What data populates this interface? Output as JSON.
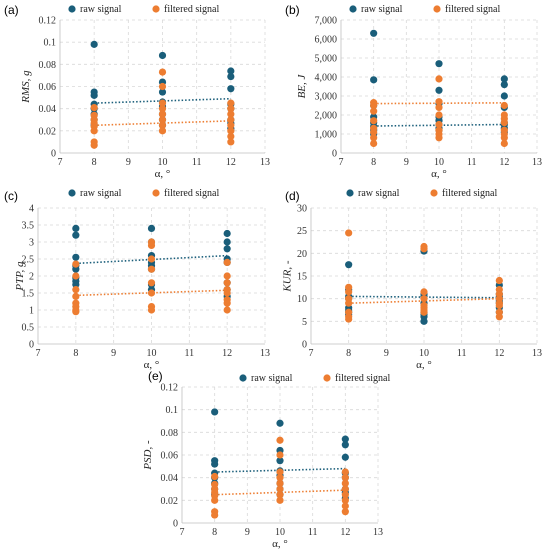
{
  "colors": {
    "raw": "#1a5e7a",
    "filtered": "#ed7d31"
  },
  "legend": {
    "raw": "raw signal",
    "filtered": "filtered signal"
  },
  "chart_data": [
    {
      "type": "scatter",
      "panel": "(a)",
      "xlabel": "α, °",
      "ylabel": "RMS, g",
      "xlim": [
        7,
        13
      ],
      "ylim": [
        0,
        0.12
      ],
      "xticks": [
        7,
        8,
        9,
        10,
        11,
        12,
        13
      ],
      "yticks": [
        0,
        0.02,
        0.04,
        0.06,
        0.08,
        0.1,
        0.12
      ],
      "ytick_labels": [
        "0",
        "0.02",
        "0.04",
        "0.06",
        "0.08",
        "0.1",
        "0.12"
      ],
      "legend_position": "top",
      "series": [
        {
          "name": "raw signal",
          "x": [
            8,
            8,
            8,
            8,
            8,
            8,
            8,
            8,
            10,
            10,
            10,
            10,
            10,
            10,
            10,
            10,
            12,
            12,
            12,
            12,
            12,
            12,
            12,
            12
          ],
          "y": [
            0.098,
            0.055,
            0.052,
            0.044,
            0.04,
            0.035,
            0.03,
            0.025,
            0.088,
            0.064,
            0.055,
            0.046,
            0.042,
            0.035,
            0.03,
            0.025,
            0.074,
            0.069,
            0.058,
            0.044,
            0.04,
            0.03,
            0.027,
            0.022
          ],
          "trend": [
            0.045,
            0.049
          ]
        },
        {
          "name": "filtered signal",
          "x": [
            8,
            8,
            8,
            8,
            8,
            8,
            8,
            8,
            10,
            10,
            10,
            10,
            10,
            10,
            10,
            10,
            12,
            12,
            12,
            12,
            12,
            12,
            12,
            12
          ],
          "y": [
            0.041,
            0.034,
            0.03,
            0.027,
            0.024,
            0.02,
            0.01,
            0.007,
            0.073,
            0.06,
            0.045,
            0.04,
            0.035,
            0.03,
            0.025,
            0.02,
            0.045,
            0.04,
            0.035,
            0.03,
            0.025,
            0.02,
            0.015,
            0.01
          ],
          "trend": [
            0.025,
            0.029
          ]
        }
      ]
    },
    {
      "type": "scatter",
      "panel": "(b)",
      "xlabel": "α, °",
      "ylabel": "BE, J",
      "xlim": [
        7,
        13
      ],
      "ylim": [
        0,
        7000
      ],
      "xticks": [
        7,
        8,
        9,
        10,
        11,
        12,
        13
      ],
      "yticks": [
        0,
        1000,
        2000,
        3000,
        4000,
        5000,
        6000,
        7000
      ],
      "ytick_labels": [
        "0",
        "1,000",
        "2,000",
        "3,000",
        "4,000",
        "5,000",
        "6,000",
        "7,000"
      ],
      "legend_position": "top",
      "series": [
        {
          "name": "raw signal",
          "x": [
            8,
            8,
            8,
            8,
            8,
            8,
            8,
            8,
            10,
            10,
            10,
            10,
            10,
            10,
            10,
            10,
            12,
            12,
            12,
            12,
            12,
            12,
            12,
            12
          ],
          "y": [
            6300,
            3850,
            2500,
            1900,
            1600,
            1400,
            1200,
            1000,
            4700,
            3300,
            2600,
            1900,
            1700,
            1500,
            1300,
            1200,
            3900,
            3600,
            3000,
            2400,
            1600,
            1500,
            1300,
            1100
          ],
          "trend": [
            1420,
            1500
          ]
        },
        {
          "name": "filtered signal",
          "x": [
            8,
            8,
            8,
            8,
            8,
            8,
            8,
            8,
            10,
            10,
            10,
            10,
            10,
            10,
            10,
            10,
            12,
            12,
            12,
            12,
            12,
            12,
            12,
            12
          ],
          "y": [
            2650,
            2500,
            2200,
            1700,
            1300,
            1100,
            800,
            500,
            3900,
            2700,
            2400,
            2000,
            1500,
            1200,
            1000,
            800,
            2500,
            2000,
            1800,
            1600,
            1200,
            1000,
            800,
            500
          ],
          "trend": [
            2600,
            2640
          ]
        }
      ]
    },
    {
      "type": "scatter",
      "panel": "(c)",
      "xlabel": "α, °",
      "ylabel": "PTP, g",
      "xlim": [
        7,
        13
      ],
      "ylim": [
        0,
        4
      ],
      "xticks": [
        7,
        8,
        9,
        10,
        11,
        12,
        13
      ],
      "yticks": [
        0,
        0.5,
        1,
        1.5,
        2,
        2.5,
        3,
        3.5,
        4
      ],
      "ytick_labels": [
        "0",
        "0.5",
        "1",
        "1.5",
        "2",
        "2.5",
        "3",
        "3.5",
        "4"
      ],
      "legend_position": "top",
      "series": [
        {
          "name": "raw signal",
          "x": [
            8,
            8,
            8,
            8,
            8,
            8,
            8,
            8,
            10,
            10,
            10,
            10,
            10,
            10,
            10,
            10,
            12,
            12,
            12,
            12,
            12,
            12,
            12,
            12
          ],
          "y": [
            3.4,
            3.2,
            2.55,
            2.3,
            2.2,
            1.95,
            1.85,
            1.75,
            3.4,
            3.0,
            2.6,
            2.4,
            2.3,
            2.2,
            1.75,
            1.6,
            3.25,
            3.0,
            2.8,
            2.5,
            2.4,
            1.8,
            1.6,
            1.4
          ],
          "trend": [
            2.37,
            2.6
          ]
        },
        {
          "name": "filtered signal",
          "x": [
            8,
            8,
            8,
            8,
            8,
            8,
            8,
            8,
            10,
            10,
            10,
            10,
            10,
            10,
            10,
            10,
            12,
            12,
            12,
            12,
            12,
            12,
            12,
            12
          ],
          "y": [
            2.35,
            2.0,
            1.6,
            1.4,
            1.2,
            1.1,
            1.0,
            0.95,
            3.0,
            2.9,
            2.5,
            2.2,
            1.8,
            1.5,
            1.1,
            1.0,
            2.4,
            2.0,
            1.8,
            1.6,
            1.5,
            1.3,
            1.2,
            1.0
          ],
          "trend": [
            1.43,
            1.58
          ]
        }
      ]
    },
    {
      "type": "scatter",
      "panel": "(d)",
      "xlabel": "α, °",
      "ylabel": "KUR, -",
      "xlim": [
        7,
        13
      ],
      "ylim": [
        0,
        30
      ],
      "xticks": [
        7,
        8,
        9,
        10,
        11,
        12,
        13
      ],
      "yticks": [
        0,
        5,
        10,
        15,
        20,
        25,
        30
      ],
      "ytick_labels": [
        "0",
        "5",
        "10",
        "15",
        "20",
        "25",
        "30"
      ],
      "legend_position": "top",
      "series": [
        {
          "name": "raw signal",
          "x": [
            8,
            8,
            8,
            8,
            8,
            8,
            8,
            8,
            10,
            10,
            10,
            10,
            10,
            10,
            10,
            10,
            12,
            12,
            12,
            12,
            12,
            12,
            12,
            12
          ],
          "y": [
            17.5,
            12,
            10.5,
            10,
            8,
            7.5,
            7,
            6.5,
            20.5,
            11,
            10.5,
            9,
            7,
            6.5,
            6,
            5,
            13,
            11,
            10.5,
            10,
            9.5,
            9,
            8,
            7
          ],
          "trend": [
            10.5,
            10.2
          ]
        },
        {
          "name": "filtered signal",
          "x": [
            8,
            8,
            8,
            8,
            8,
            8,
            8,
            8,
            10,
            10,
            10,
            10,
            10,
            10,
            10,
            10,
            12,
            12,
            12,
            12,
            12,
            12,
            12,
            12
          ],
          "y": [
            24.5,
            12.5,
            11.5,
            10,
            9,
            7,
            6,
            5.5,
            21.5,
            21,
            11.5,
            10,
            8.5,
            8,
            7.5,
            7,
            14,
            12,
            11,
            10,
            9,
            8.5,
            7,
            6
          ],
          "trend": [
            9.0,
            10.0
          ]
        }
      ]
    },
    {
      "type": "scatter",
      "panel": "(e)",
      "xlabel": "α, °",
      "ylabel": "PSD, -",
      "xlim": [
        7,
        13
      ],
      "ylim": [
        0,
        0.12
      ],
      "xticks": [
        7,
        8,
        9,
        10,
        11,
        12,
        13
      ],
      "yticks": [
        0,
        0.02,
        0.04,
        0.06,
        0.08,
        0.1,
        0.12
      ],
      "ytick_labels": [
        "0",
        "0.02",
        "0.04",
        "0.06",
        "0.08",
        "0.1",
        "0.12"
      ],
      "legend_position": "top",
      "series": [
        {
          "name": "raw signal",
          "x": [
            8,
            8,
            8,
            8,
            8,
            8,
            8,
            8,
            10,
            10,
            10,
            10,
            10,
            10,
            10,
            10,
            12,
            12,
            12,
            12,
            12,
            12,
            12,
            12
          ],
          "y": [
            0.098,
            0.055,
            0.052,
            0.044,
            0.04,
            0.035,
            0.03,
            0.025,
            0.088,
            0.064,
            0.055,
            0.046,
            0.042,
            0.035,
            0.03,
            0.025,
            0.074,
            0.069,
            0.058,
            0.044,
            0.04,
            0.03,
            0.027,
            0.022
          ],
          "trend": [
            0.045,
            0.048
          ]
        },
        {
          "name": "filtered signal",
          "x": [
            8,
            8,
            8,
            8,
            8,
            8,
            8,
            8,
            10,
            10,
            10,
            10,
            10,
            10,
            10,
            10,
            12,
            12,
            12,
            12,
            12,
            12,
            12,
            12
          ],
          "y": [
            0.041,
            0.034,
            0.03,
            0.027,
            0.024,
            0.02,
            0.01,
            0.007,
            0.073,
            0.06,
            0.045,
            0.04,
            0.035,
            0.03,
            0.025,
            0.02,
            0.045,
            0.04,
            0.035,
            0.03,
            0.025,
            0.02,
            0.015,
            0.01
          ],
          "trend": [
            0.025,
            0.029
          ]
        }
      ]
    }
  ]
}
